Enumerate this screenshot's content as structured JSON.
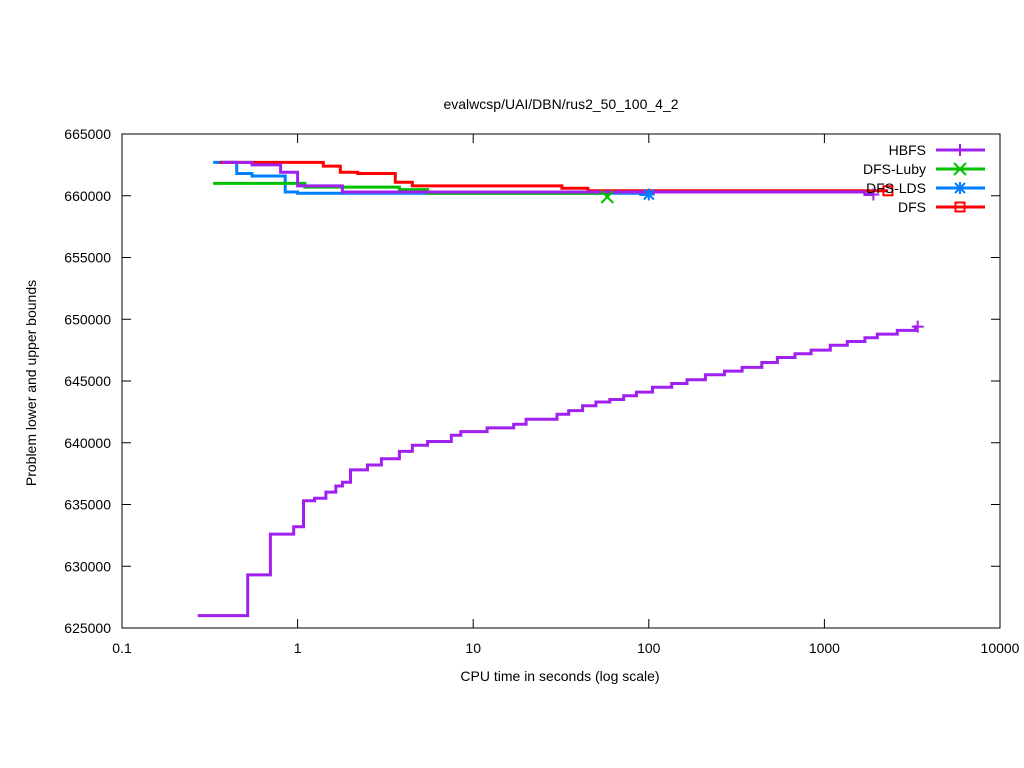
{
  "chart_data": {
    "type": "line",
    "title": "evalwcsp/UAI/DBN/rus2_50_100_4_2",
    "xlabel": "CPU time in seconds (log scale)",
    "ylabel": "Problem lower and upper bounds",
    "xscale": "log",
    "xlim": [
      0.1,
      10000
    ],
    "ylim": [
      625000,
      665000
    ],
    "grid": false,
    "legend_position": "top-right",
    "x_ticks": [
      {
        "value": 0.1,
        "label": "0.1"
      },
      {
        "value": 1,
        "label": "1"
      },
      {
        "value": 10,
        "label": "10"
      },
      {
        "value": 100,
        "label": "100"
      },
      {
        "value": 1000,
        "label": "1000"
      },
      {
        "value": 10000,
        "label": "10000"
      }
    ],
    "y_ticks": [
      {
        "value": 625000,
        "label": "625000"
      },
      {
        "value": 630000,
        "label": "630000"
      },
      {
        "value": 635000,
        "label": "635000"
      },
      {
        "value": 640000,
        "label": "640000"
      },
      {
        "value": 645000,
        "label": "645000"
      },
      {
        "value": 650000,
        "label": "650000"
      },
      {
        "value": 655000,
        "label": "655000"
      },
      {
        "value": 660000,
        "label": "660000"
      },
      {
        "value": 665000,
        "label": "665000"
      }
    ],
    "series": [
      {
        "name": "HBFS",
        "color": "#a020f0",
        "marker": "plus",
        "points": [
          [
            0.27,
            626000
          ],
          [
            0.52,
            626000
          ],
          [
            0.52,
            629300
          ],
          [
            0.7,
            629300
          ],
          [
            0.7,
            632600
          ],
          [
            0.95,
            632600
          ],
          [
            0.95,
            633200
          ],
          [
            1.08,
            633200
          ],
          [
            1.08,
            635300
          ],
          [
            1.25,
            635300
          ],
          [
            1.25,
            635500
          ],
          [
            1.45,
            635500
          ],
          [
            1.45,
            636000
          ],
          [
            1.65,
            636000
          ],
          [
            1.65,
            636500
          ],
          [
            1.8,
            636500
          ],
          [
            1.8,
            636800
          ],
          [
            2.0,
            636800
          ],
          [
            2.0,
            637800
          ],
          [
            2.5,
            637800
          ],
          [
            2.5,
            638200
          ],
          [
            3.0,
            638200
          ],
          [
            3.0,
            638700
          ],
          [
            3.8,
            638700
          ],
          [
            3.8,
            639300
          ],
          [
            4.5,
            639300
          ],
          [
            4.5,
            639800
          ],
          [
            5.5,
            639800
          ],
          [
            5.5,
            640100
          ],
          [
            7.5,
            640100
          ],
          [
            7.5,
            640600
          ],
          [
            8.5,
            640600
          ],
          [
            8.5,
            640900
          ],
          [
            12.0,
            640900
          ],
          [
            12.0,
            641200
          ],
          [
            17.0,
            641200
          ],
          [
            17.0,
            641500
          ],
          [
            20.0,
            641500
          ],
          [
            20.0,
            641900
          ],
          [
            30.0,
            641900
          ],
          [
            30.0,
            642300
          ],
          [
            35.0,
            642300
          ],
          [
            35.0,
            642600
          ],
          [
            42.0,
            642600
          ],
          [
            42.0,
            643000
          ],
          [
            50.0,
            643000
          ],
          [
            50.0,
            643300
          ],
          [
            60.0,
            643300
          ],
          [
            60.0,
            643500
          ],
          [
            72.0,
            643500
          ],
          [
            72.0,
            643800
          ],
          [
            85.0,
            643800
          ],
          [
            85.0,
            644100
          ],
          [
            105.0,
            644100
          ],
          [
            105.0,
            644500
          ],
          [
            135.0,
            644500
          ],
          [
            135.0,
            644800
          ],
          [
            165.0,
            644800
          ],
          [
            165.0,
            645100
          ],
          [
            210.0,
            645100
          ],
          [
            210.0,
            645500
          ],
          [
            270.0,
            645500
          ],
          [
            270.0,
            645800
          ],
          [
            340.0,
            645800
          ],
          [
            340.0,
            646100
          ],
          [
            440.0,
            646100
          ],
          [
            440.0,
            646500
          ],
          [
            540.0,
            646500
          ],
          [
            540.0,
            646900
          ],
          [
            680.0,
            646900
          ],
          [
            680.0,
            647200
          ],
          [
            840.0,
            647200
          ],
          [
            840.0,
            647500
          ],
          [
            1080.0,
            647500
          ],
          [
            1080.0,
            647900
          ],
          [
            1350.0,
            647900
          ],
          [
            1350.0,
            648200
          ],
          [
            1700.0,
            648200
          ],
          [
            1700.0,
            648500
          ],
          [
            2000.0,
            648500
          ],
          [
            2000.0,
            648800
          ],
          [
            2600.0,
            648800
          ],
          [
            2600.0,
            649100
          ],
          [
            3300.0,
            649100
          ],
          [
            3300.0,
            649400
          ],
          [
            3400.0,
            649400
          ]
        ],
        "upper_points": [
          [
            0.37,
            662700
          ],
          [
            0.55,
            662700
          ],
          [
            0.55,
            662500
          ],
          [
            0.8,
            662500
          ],
          [
            0.8,
            661900
          ],
          [
            1.0,
            661900
          ],
          [
            1.0,
            660800
          ],
          [
            1.8,
            660800
          ],
          [
            1.8,
            660300
          ],
          [
            1700.0,
            660300
          ],
          [
            1700.0,
            660100
          ],
          [
            1900.0,
            660100
          ]
        ]
      },
      {
        "name": "DFS-Luby",
        "color": "#00c000",
        "marker": "x",
        "points": [
          [
            0.33,
            661000
          ],
          [
            1.1,
            661000
          ],
          [
            1.1,
            660700
          ],
          [
            3.8,
            660700
          ],
          [
            3.8,
            660500
          ],
          [
            5.5,
            660500
          ],
          [
            5.5,
            660200
          ],
          [
            58.0,
            660200
          ],
          [
            58.0,
            659900
          ]
        ]
      },
      {
        "name": "DFS-LDS",
        "color": "#0080ff",
        "marker": "star",
        "points": [
          [
            0.33,
            662700
          ],
          [
            0.45,
            662700
          ],
          [
            0.45,
            661800
          ],
          [
            0.55,
            661800
          ],
          [
            0.55,
            661600
          ],
          [
            0.85,
            661600
          ],
          [
            0.85,
            660300
          ],
          [
            1.0,
            660300
          ],
          [
            1.0,
            660200
          ],
          [
            90.0,
            660200
          ],
          [
            90.0,
            660100
          ],
          [
            100.0,
            660100
          ]
        ]
      },
      {
        "name": "DFS",
        "color": "#ff0000",
        "marker": "square",
        "points": [
          [
            0.36,
            662700
          ],
          [
            1.4,
            662700
          ],
          [
            1.4,
            662400
          ],
          [
            1.75,
            662400
          ],
          [
            1.75,
            661900
          ],
          [
            2.2,
            661900
          ],
          [
            2.2,
            661800
          ],
          [
            3.6,
            661800
          ],
          [
            3.6,
            661100
          ],
          [
            4.5,
            661100
          ],
          [
            4.5,
            660800
          ],
          [
            32.0,
            660800
          ],
          [
            32.0,
            660600
          ],
          [
            45.0,
            660600
          ],
          [
            45.0,
            660400
          ],
          [
            2300.0,
            660400
          ]
        ]
      }
    ]
  }
}
